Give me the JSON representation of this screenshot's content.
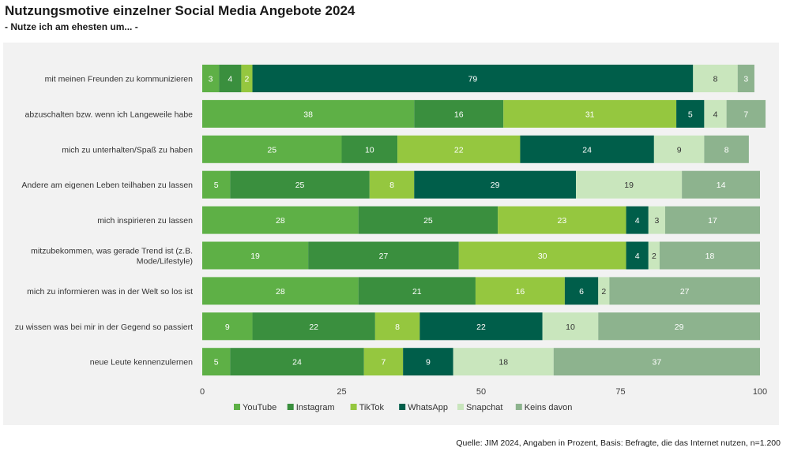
{
  "title": "Nutzungsmotive einzelner Social Media Angebote 2024",
  "subtitle": "- Nutze ich am ehesten um... -",
  "source": "Quelle: JIM 2024, Angaben in Prozent, Basis: Befragte, die das Internet nutzen, n=1.200",
  "chart_data": {
    "type": "bar",
    "orientation": "horizontal",
    "stacked": true,
    "title": "Nutzungsmotive einzelner Social Media Angebote 2024",
    "subtitle": "- Nutze ich am ehesten um... -",
    "xlim": [
      0,
      100
    ],
    "xticks": [
      0,
      25,
      50,
      75,
      100
    ],
    "grid": false,
    "legend_position": "bottom",
    "categories": [
      [
        "mit meinen Freunden zu kommunizieren"
      ],
      [
        "abzuschalten bzw. wenn ich Langeweile habe"
      ],
      [
        "mich zu unterhalten/Spaß zu haben"
      ],
      [
        "Andere am eigenen Leben teilhaben zu lassen"
      ],
      [
        "mich inspirieren zu lassen"
      ],
      [
        "mitzubekommen, was gerade Trend ist (z.B.",
        "Mode/Lifestyle)"
      ],
      [
        "mich zu informieren  was in der Welt so los ist"
      ],
      [
        "zu wissen was bei mir in der Gegend so passiert"
      ],
      [
        "neue Leute kennenzulernen"
      ]
    ],
    "series": [
      {
        "name": "YouTube",
        "color": "#5eb046",
        "label_color": "#ffffff",
        "values": [
          3,
          38,
          25,
          5,
          28,
          19,
          28,
          9,
          5
        ]
      },
      {
        "name": "Instagram",
        "color": "#3a8f3e",
        "label_color": "#ffffff",
        "values": [
          4,
          16,
          10,
          25,
          25,
          27,
          21,
          22,
          24
        ]
      },
      {
        "name": "TikTok",
        "color": "#95c73f",
        "label_color": "#ffffff",
        "values": [
          2,
          31,
          22,
          8,
          23,
          30,
          16,
          8,
          7
        ]
      },
      {
        "name": "WhatsApp",
        "color": "#005e4a",
        "label_color": "#ffffff",
        "values": [
          79,
          5,
          24,
          29,
          4,
          4,
          6,
          22,
          9
        ]
      },
      {
        "name": "Snapchat",
        "color": "#c9e6bd",
        "label_color": "#333333",
        "values": [
          8,
          4,
          9,
          19,
          3,
          2,
          2,
          10,
          18
        ]
      },
      {
        "name": "Keins davon",
        "color": "#8db38e",
        "label_color": "#ffffff",
        "values": [
          3,
          7,
          8,
          14,
          17,
          18,
          27,
          29,
          37
        ]
      }
    ]
  }
}
